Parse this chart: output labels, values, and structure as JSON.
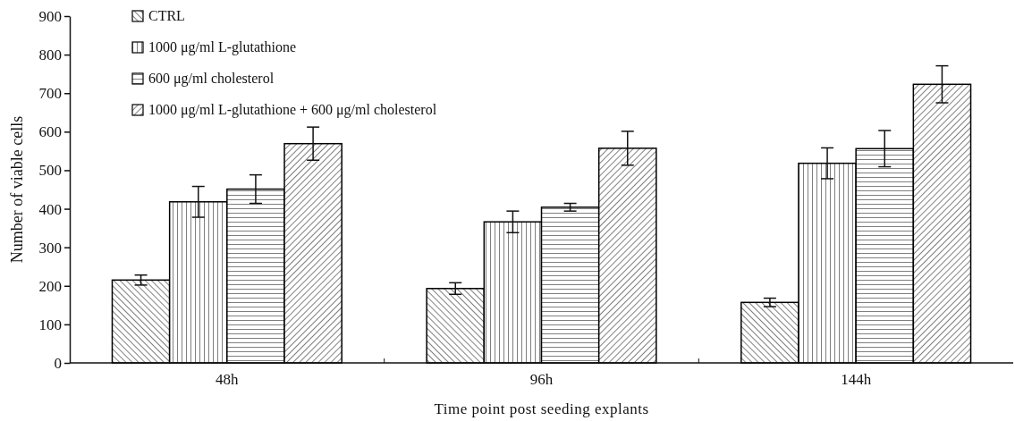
{
  "chart_data": {
    "type": "bar",
    "xlabel": "Time point post seeding explants",
    "ylabel": "Number of viable cells",
    "categories": [
      "48h",
      "96h",
      "144h"
    ],
    "series": [
      {
        "name": "CTRL",
        "color": "#000000",
        "values": [
          215,
          193,
          157
        ],
        "errors": [
          13,
          15,
          11
        ]
      },
      {
        "name": "1000 μg/ml L-glutathione",
        "color": "#000000",
        "values": [
          418,
          366,
          518
        ],
        "errors": [
          40,
          28,
          40
        ]
      },
      {
        "name": "600 μg/ml cholesterol",
        "color": "#000000",
        "values": [
          451,
          404,
          556
        ],
        "errors": [
          37,
          10,
          47
        ]
      },
      {
        "name": "1000 μg/ml L-glutathione + 600 μg/ml cholesterol",
        "color": "#000000",
        "values": [
          569,
          557,
          723
        ],
        "errors": [
          43,
          44,
          48
        ]
      }
    ],
    "ylim": [
      0,
      900
    ],
    "yticks": [
      0,
      100,
      200,
      300,
      400,
      500,
      600,
      700,
      800,
      900
    ],
    "grid": false,
    "legend": "top left"
  }
}
